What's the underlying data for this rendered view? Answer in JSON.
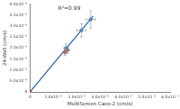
{
  "chart_data": {
    "type": "scatter",
    "x_label": "MultiScreen Caco-2 (cm/s)",
    "y_label": "24-Well (cm/s)",
    "annotation": "R²=0.99",
    "grid": false,
    "xlim": [
      0,
      6e-06
    ],
    "xticks": [
      0,
      {
        "value": 1e-06,
        "label": "1.0x10⁻⁶"
      },
      {
        "value": 2e-06,
        "label": "2.0x10⁻⁶"
      },
      {
        "value": 3e-06,
        "label": "3.0x10⁻⁶"
      },
      {
        "value": 4e-06,
        "label": "4.0x10⁻⁶"
      },
      {
        "value": 5e-06,
        "label": "5.0x10⁻⁶"
      },
      {
        "value": 6e-06,
        "label": "6.0x10⁻⁶"
      }
    ],
    "ylim": [
      0,
      4e-05
    ],
    "yticks": [
      0,
      {
        "value": 5e-06,
        "label": "5.0x10⁻⁶"
      },
      {
        "value": 1e-05,
        "label": "1.0x10⁻⁵"
      },
      {
        "value": 1.5e-05,
        "label": "1.5x10⁻⁵"
      },
      {
        "value": 2e-05,
        "label": "2.0x10⁻⁵"
      },
      {
        "value": 2.5e-05,
        "label": "2.5x10⁻⁵"
      },
      {
        "value": 3e-05,
        "label": "3.0x10⁻⁵"
      },
      {
        "value": 3.5e-05,
        "label": "3.5x10⁻⁵"
      },
      {
        "value": 4e-05,
        "label": "4.0x10⁻⁵"
      }
    ],
    "series": [
      {
        "type": "scatter",
        "marker": "circle",
        "colors": [
          "#d9342b",
          "#d9342b",
          "#3a6fb5",
          "#d9342b",
          "#3a6fb5",
          "#3a6fb5"
        ],
        "x": [
          0,
          1.5e-06,
          1.55e-06,
          1.6e-06,
          2.2e-06,
          2.6e-06
        ],
        "values": [
          0,
          1.8e-05,
          2e-05,
          1.9e-05,
          2.8e-05,
          3.3e-05
        ],
        "x_errors": [
          0,
          1e-07,
          1e-07,
          1e-07,
          2e-07,
          2e-07
        ],
        "y_errors": [
          0,
          1.5e-06,
          2e-06,
          1.5e-06,
          3e-06,
          4e-06
        ]
      },
      {
        "type": "line",
        "line_style": "solid",
        "color": "#1f5fa8",
        "x": [
          0,
          2.7e-06
        ],
        "values": [
          0,
          3.45e-05
        ]
      }
    ]
  }
}
